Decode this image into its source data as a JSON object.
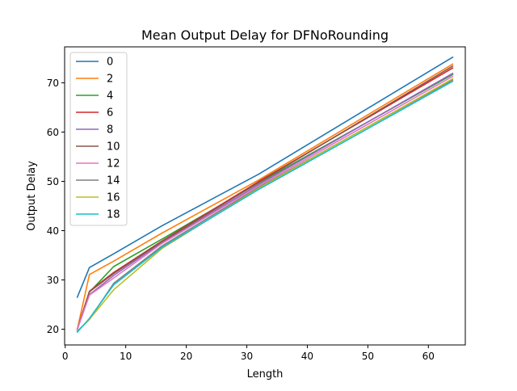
{
  "chart_data": {
    "type": "line",
    "title": "Mean Output Delay for DFNoRounding",
    "xlabel": "Length",
    "ylabel": "Output Delay",
    "xlim": [
      -0.1,
      66.1
    ],
    "ylim": [
      16.8,
      77.3
    ],
    "xticks": [
      0,
      10,
      20,
      30,
      40,
      50,
      60
    ],
    "yticks": [
      20,
      30,
      40,
      50,
      60,
      70
    ],
    "x": [
      2,
      4,
      8,
      16,
      32,
      64
    ],
    "grid": false,
    "legend_position": "top-left",
    "series": [
      {
        "name": "0",
        "color": "#1f77b4",
        "values": [
          26.5,
          32.5,
          35.3,
          41.0,
          51.5,
          75.2
        ]
      },
      {
        "name": "2",
        "color": "#ff7f0e",
        "values": [
          20.0,
          31.1,
          33.8,
          39.5,
          50.3,
          73.8
        ]
      },
      {
        "name": "4",
        "color": "#2ca02c",
        "values": [
          20.0,
          27.5,
          32.7,
          38.3,
          49.7,
          71.7
        ]
      },
      {
        "name": "6",
        "color": "#d62728",
        "values": [
          20.0,
          27.7,
          31.5,
          37.9,
          50.0,
          73.0
        ]
      },
      {
        "name": "8",
        "color": "#9467bd",
        "values": [
          20.0,
          27.0,
          30.9,
          37.6,
          49.4,
          71.9
        ]
      },
      {
        "name": "10",
        "color": "#8c564b",
        "values": [
          20.0,
          27.6,
          31.3,
          37.8,
          49.8,
          73.4
        ]
      },
      {
        "name": "12",
        "color": "#e377c2",
        "values": [
          20.0,
          26.9,
          30.4,
          37.4,
          49.1,
          71.3
        ]
      },
      {
        "name": "14",
        "color": "#7f7f7f",
        "values": [
          19.6,
          22.0,
          29.3,
          36.9,
          48.8,
          70.6
        ]
      },
      {
        "name": "16",
        "color": "#bcbd22",
        "values": [
          19.5,
          22.0,
          28.0,
          36.4,
          48.6,
          70.8
        ]
      },
      {
        "name": "18",
        "color": "#17becf",
        "values": [
          19.4,
          22.2,
          29.0,
          36.6,
          48.4,
          70.3
        ]
      }
    ]
  }
}
